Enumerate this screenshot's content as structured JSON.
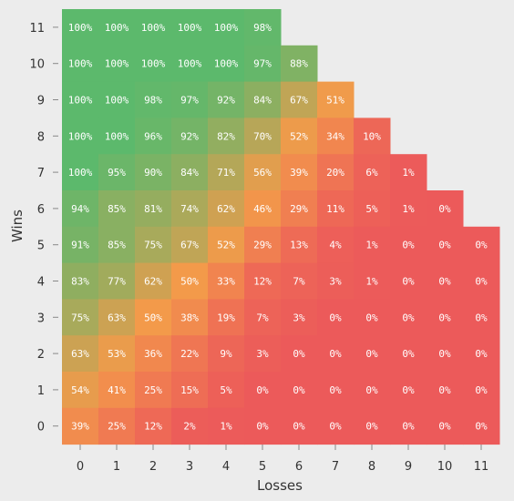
{
  "chart_data": {
    "type": "heatmap",
    "xlabel": "Losses",
    "ylabel": "Wins",
    "x": [
      0,
      1,
      2,
      3,
      4,
      5,
      6,
      7,
      8,
      9,
      10,
      11
    ],
    "y": [
      0,
      1,
      2,
      3,
      4,
      5,
      6,
      7,
      8,
      9,
      10,
      11
    ],
    "unit": "%",
    "rows": [
      {
        "wins": 11,
        "values": [
          100,
          100,
          100,
          100,
          100,
          98
        ]
      },
      {
        "wins": 10,
        "values": [
          100,
          100,
          100,
          100,
          100,
          97,
          88
        ]
      },
      {
        "wins": 9,
        "values": [
          100,
          100,
          98,
          97,
          92,
          84,
          67,
          51
        ]
      },
      {
        "wins": 8,
        "values": [
          100,
          100,
          96,
          92,
          82,
          70,
          52,
          34,
          10
        ]
      },
      {
        "wins": 7,
        "values": [
          100,
          95,
          90,
          84,
          71,
          56,
          39,
          20,
          6,
          1
        ]
      },
      {
        "wins": 6,
        "values": [
          94,
          85,
          81,
          74,
          62,
          46,
          29,
          11,
          5,
          1,
          0
        ]
      },
      {
        "wins": 5,
        "values": [
          91,
          85,
          75,
          67,
          52,
          29,
          13,
          4,
          1,
          0,
          0,
          0
        ]
      },
      {
        "wins": 4,
        "values": [
          83,
          77,
          62,
          50,
          33,
          12,
          7,
          3,
          1,
          0,
          0,
          0
        ]
      },
      {
        "wins": 3,
        "values": [
          75,
          63,
          50,
          38,
          19,
          7,
          3,
          0,
          0,
          0,
          0,
          0
        ]
      },
      {
        "wins": 2,
        "values": [
          63,
          53,
          36,
          22,
          9,
          3,
          0,
          0,
          0,
          0,
          0,
          0
        ]
      },
      {
        "wins": 1,
        "values": [
          54,
          41,
          25,
          15,
          5,
          0,
          0,
          0,
          0,
          0,
          0,
          0
        ]
      },
      {
        "wins": 0,
        "values": [
          39,
          25,
          12,
          2,
          1,
          0,
          0,
          0,
          0,
          0,
          0,
          0
        ]
      }
    ],
    "color_scale": [
      "#ec5a5a",
      "#f39a4a",
      "#5cb96c"
    ]
  }
}
